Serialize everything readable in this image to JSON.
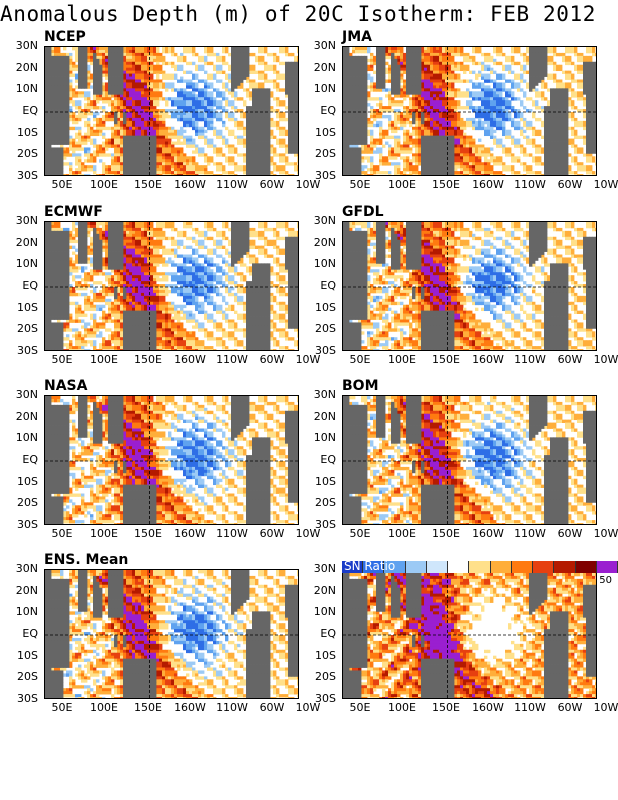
{
  "title": "Anomalous Depth (m) of 20C Isotherm: FEB 2012",
  "y_ticks": [
    "30N",
    "20N",
    "10N",
    "EQ",
    "10S",
    "20S",
    "30S"
  ],
  "x_ticks": [
    "50E",
    "100E",
    "150E",
    "160W",
    "110W",
    "60W",
    "10W"
  ],
  "panels": [
    {
      "name": "NCEP"
    },
    {
      "name": "JMA"
    },
    {
      "name": "ECMWF"
    },
    {
      "name": "GFDL"
    },
    {
      "name": "NASA"
    },
    {
      "name": "BOM"
    },
    {
      "name": "ENS. Mean"
    },
    {
      "name": "SN Ratio"
    }
  ],
  "legend": {
    "title": "SN Ratio",
    "max_label": "50",
    "colors": [
      "#1a3cc8",
      "#2e6ee6",
      "#5fa2ef",
      "#9ccaf5",
      "#cfe6fb",
      "#ffffff",
      "#ffe08a",
      "#ffae3a",
      "#ff7a10",
      "#e64010",
      "#b41a00",
      "#800000",
      "#9a1fd0"
    ]
  },
  "colors": {
    "land": "#666666",
    "ocean_white": "#ffffff"
  }
}
